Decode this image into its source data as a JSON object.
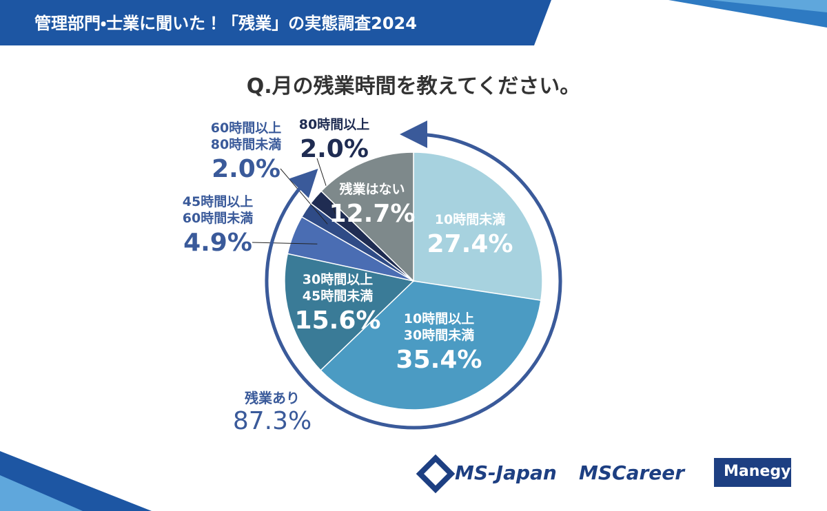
{
  "header": {
    "title": "管理部門・士業に聞いた！「残業」の実態調査2024"
  },
  "chart_data": {
    "type": "pie",
    "title": "Q.月の残業時間を教えてください。",
    "categories": [
      "10時間未満",
      "10時間以上\n30時間未満",
      "30時間以上\n45時間未満",
      "45時間以上\n60時間未満",
      "60時間以上\n80時間未満",
      "80時間以上",
      "残業はない"
    ],
    "values": [
      27.4,
      35.4,
      15.6,
      4.9,
      2.0,
      2.0,
      12.7
    ],
    "value_labels": [
      "27.4%",
      "35.4%",
      "15.6%",
      "4.9%",
      "2.0%",
      "2.0%",
      "12.7%"
    ],
    "colors": [
      "#a7d2df",
      "#4b9bc3",
      "#3a7b97",
      "#4a6db3",
      "#2f4b86",
      "#1f2c52",
      "#7e898b"
    ],
    "annotation": {
      "label": "残業あり",
      "value": 87.3,
      "value_label": "87.3%"
    }
  },
  "logos": [
    "MS-Japan",
    "MSCareer",
    "Manegy"
  ]
}
